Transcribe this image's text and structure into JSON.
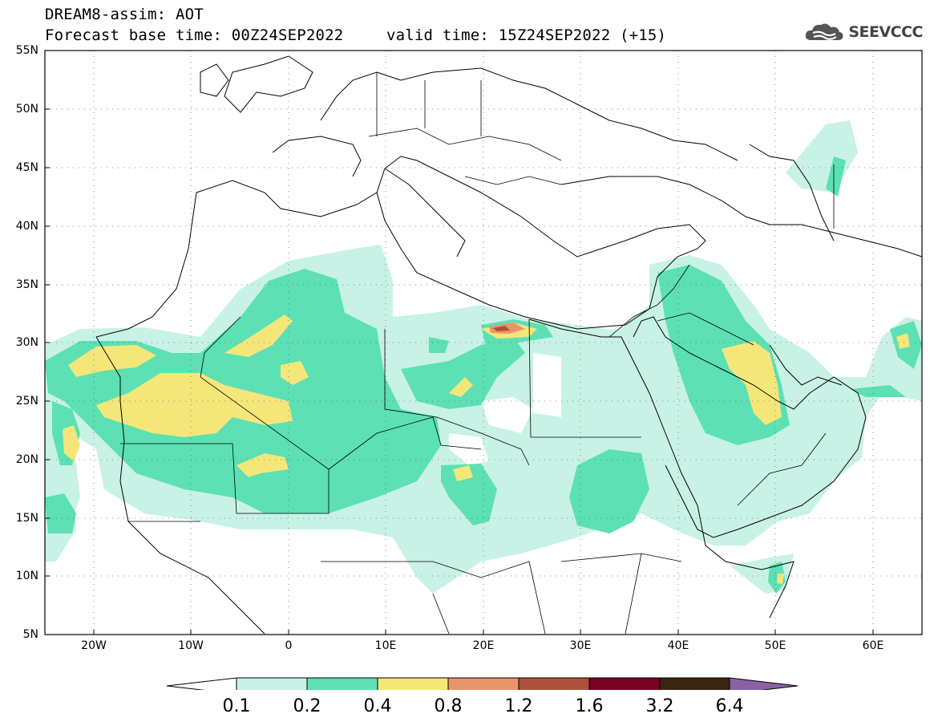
{
  "header": {
    "model_line": "DREAM8-assim: AOT",
    "base_time": "Forecast base time: 00Z24SEP2022",
    "valid_time": "valid time: 15Z24SEP2022 (+15)"
  },
  "logo": {
    "text": "SEEVCCC",
    "icon": "cloud-icon"
  },
  "map": {
    "lat_ticks": [
      "55N",
      "50N",
      "45N",
      "40N",
      "35N",
      "30N",
      "25N",
      "20N",
      "15N",
      "10N",
      "5N"
    ],
    "lon_ticks": [
      "20W",
      "10W",
      "0",
      "10E",
      "20E",
      "30E",
      "40E",
      "50E",
      "60E"
    ]
  },
  "colorbar": {
    "labels": [
      "0.1",
      "0.2",
      "0.4",
      "0.8",
      "1.2",
      "1.6",
      "3.2",
      "6.4"
    ],
    "colors": [
      "#ffffff",
      "#c8f2e6",
      "#5ce0b4",
      "#f5e67a",
      "#e8956a",
      "#b0503c",
      "#7a0024",
      "#3a2412",
      "#8a62a4"
    ]
  }
}
